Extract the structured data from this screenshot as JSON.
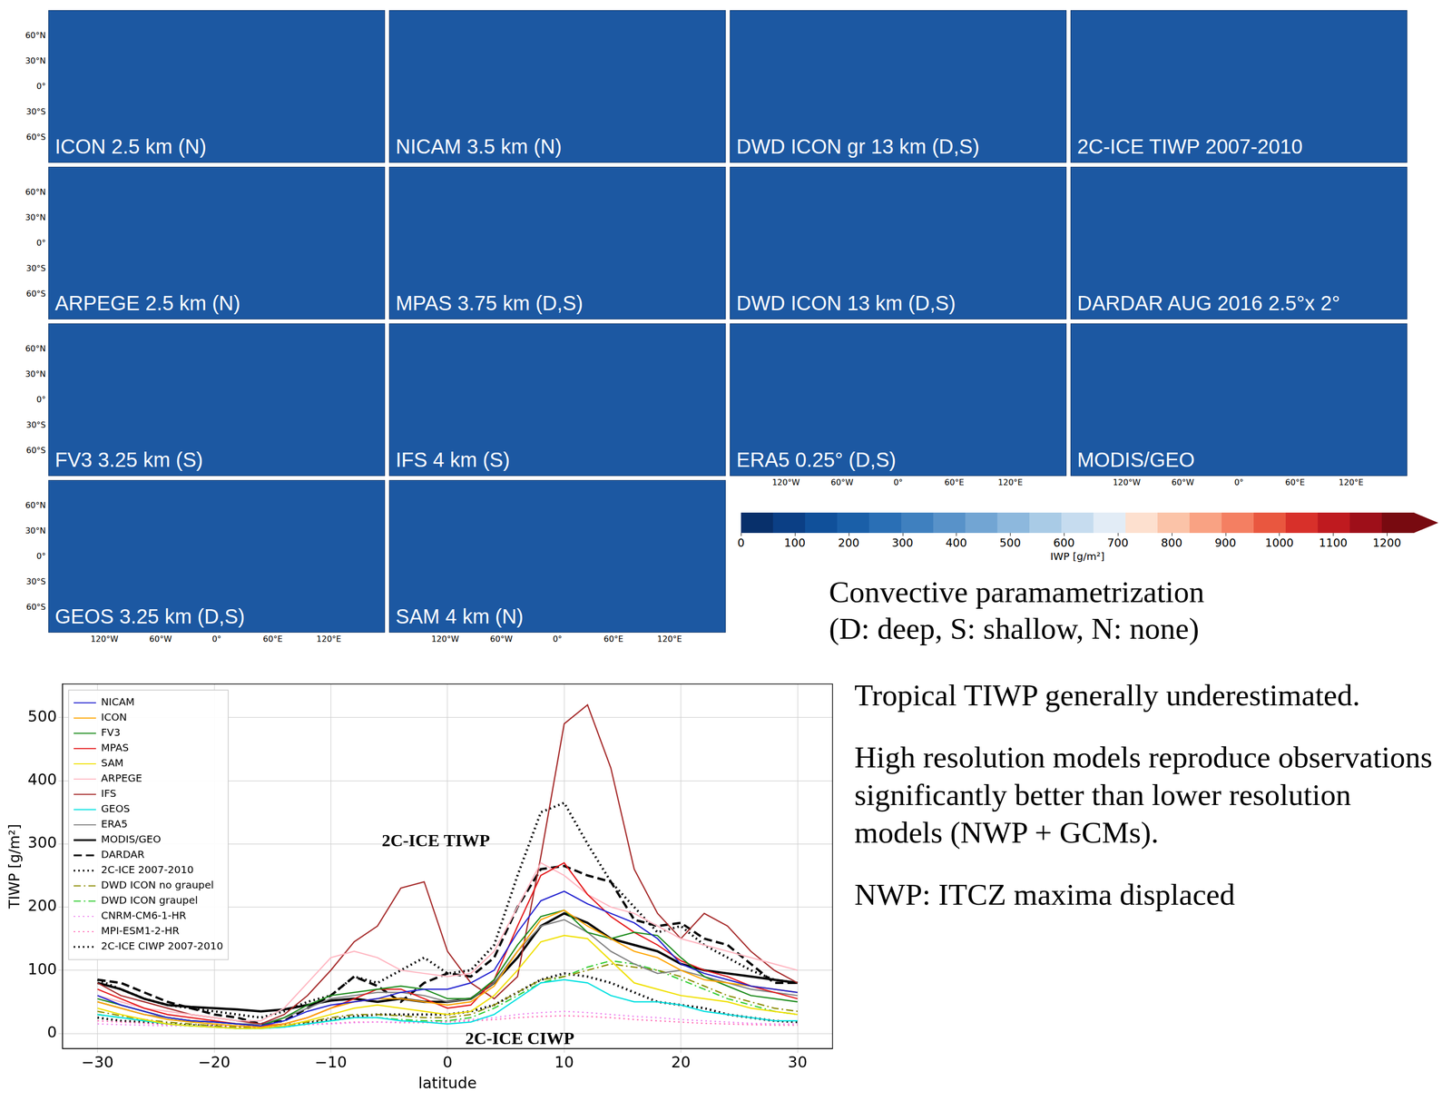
{
  "maps": {
    "lat_range": [
      -90,
      90
    ],
    "lon_range": [
      -180,
      180
    ],
    "lat_ticks": [
      {
        "value": 60,
        "label": "60°N"
      },
      {
        "value": 30,
        "label": "30°N"
      },
      {
        "value": 0,
        "label": "0°"
      },
      {
        "value": -30,
        "label": "30°S"
      },
      {
        "value": -60,
        "label": "60°S"
      }
    ],
    "lon_ticks": [
      {
        "value": -120,
        "label": "120°W"
      },
      {
        "value": -60,
        "label": "60°W"
      },
      {
        "value": 0,
        "label": "0°"
      },
      {
        "value": 60,
        "label": "60°E"
      },
      {
        "value": 120,
        "label": "120°E"
      }
    ],
    "rows": [
      [
        "ICON 2.5 km (N)",
        "NICAM 3.5 km (N)",
        "DWD ICON gr 13 km (D,S)",
        "2C-ICE TIWP 2007-2010"
      ],
      [
        "ARPEGE 2.5 km (N)",
        "MPAS 3.75 km (D,S)",
        "DWD ICON 13 km (D,S)",
        "DARDAR AUG 2016 2.5°x 2°"
      ],
      [
        "FV3 3.25 km (S)",
        "IFS 4 km (S)",
        "ERA5 0.25° (D,S)",
        "MODIS/GEO"
      ],
      [
        "GEOS 3.25 km (D,S)",
        "SAM 4 km (N)"
      ]
    ]
  },
  "colorbar": {
    "label": "IWP [g/m²]",
    "range": [
      0,
      1250
    ],
    "ticks": [
      0,
      100,
      200,
      300,
      400,
      500,
      600,
      700,
      800,
      900,
      1000,
      1100,
      1200
    ],
    "colors": [
      "#08306b",
      "#0b3f85",
      "#10509a",
      "#1a5fa8",
      "#2a6fb5",
      "#3f80bf",
      "#5892c9",
      "#72a5d3",
      "#8db8dd",
      "#a9cbe6",
      "#c6dcef",
      "#e2ecf6",
      "#fde0cf",
      "#fbc3a8",
      "#f9a283",
      "#f47f62",
      "#e9573f",
      "#d8302a",
      "#bf1a1f",
      "#9e0f19",
      "#780a10"
    ]
  },
  "convection_key": [
    "Convective paramametrization",
    "(D: deep, S: shallow, N: none)"
  ],
  "notes": [
    "Tropical TIWP generally underestimated.",
    "High resolution models reproduce observations significantly better than lower resolution models (NWP + GCMs).",
    "NWP: ITCZ maxima displaced"
  ],
  "chart_data": {
    "type": "line",
    "x_label": "latitude",
    "y_label": "TIWP [g/m²]",
    "xlim": [
      -33,
      33
    ],
    "ylim": [
      -24,
      553
    ],
    "xticks": [
      {
        "value": -30,
        "label": "−30"
      },
      {
        "value": -20,
        "label": "−20"
      },
      {
        "value": -10,
        "label": "−10"
      },
      0,
      10,
      20,
      30
    ],
    "yticks": [
      0,
      100,
      200,
      300,
      400,
      500
    ],
    "grid": true,
    "legend": "upper left",
    "annotations": [
      {
        "text": "2C-ICE TIWP",
        "x": -1,
        "y": 303
      },
      {
        "text": "2C-ICE CIWP",
        "x": 6.2,
        "y": -10
      }
    ],
    "x": [
      -30,
      -28,
      -26,
      -24,
      -22,
      -20,
      -18,
      -16,
      -14,
      -12,
      -10,
      -8,
      -6,
      -4,
      -2,
      0,
      2,
      4,
      6,
      8,
      10,
      12,
      14,
      16,
      18,
      20,
      22,
      24,
      26,
      28,
      30
    ],
    "series": [
      {
        "name": "NICAM",
        "color": "#2323d0",
        "line_style": "solid",
        "values": [
          60,
          45,
          35,
          25,
          20,
          18,
          15,
          12,
          20,
          35,
          45,
          50,
          55,
          65,
          70,
          70,
          80,
          100,
          160,
          210,
          225,
          205,
          190,
          175,
          150,
          110,
          95,
          85,
          75,
          70,
          65
        ]
      },
      {
        "name": "ICON",
        "color": "#ffa500",
        "line_style": "solid",
        "values": [
          50,
          40,
          30,
          22,
          18,
          15,
          12,
          10,
          15,
          25,
          40,
          50,
          55,
          55,
          50,
          45,
          50,
          75,
          130,
          180,
          195,
          170,
          150,
          130,
          120,
          100,
          85,
          80,
          75,
          70,
          65
        ]
      },
      {
        "name": "FV3",
        "color": "#1a8a1a",
        "line_style": "solid",
        "values": [
          55,
          45,
          35,
          25,
          20,
          18,
          15,
          12,
          25,
          45,
          60,
          65,
          70,
          75,
          70,
          55,
          55,
          85,
          140,
          185,
          195,
          160,
          150,
          160,
          155,
          120,
          90,
          75,
          60,
          55,
          50
        ]
      },
      {
        "name": "MPAS",
        "color": "#e41a1c",
        "line_style": "solid",
        "values": [
          70,
          55,
          40,
          30,
          25,
          20,
          15,
          12,
          15,
          25,
          40,
          55,
          70,
          70,
          55,
          40,
          45,
          85,
          170,
          250,
          270,
          220,
          185,
          160,
          140,
          115,
          100,
          90,
          75,
          65,
          55
        ]
      },
      {
        "name": "SAM",
        "color": "#f0e000",
        "line_style": "solid",
        "values": [
          40,
          30,
          22,
          15,
          12,
          10,
          8,
          8,
          12,
          20,
          30,
          40,
          45,
          40,
          35,
          30,
          35,
          60,
          100,
          145,
          155,
          150,
          115,
          80,
          70,
          60,
          55,
          50,
          40,
          35,
          30
        ]
      },
      {
        "name": "ARPEGE",
        "color": "#ffb6c1",
        "line_style": "solid",
        "values": [
          60,
          50,
          40,
          35,
          30,
          25,
          20,
          20,
          40,
          80,
          120,
          130,
          120,
          100,
          95,
          90,
          95,
          130,
          200,
          270,
          250,
          220,
          200,
          190,
          170,
          150,
          140,
          130,
          120,
          110,
          100
        ]
      },
      {
        "name": "IFS",
        "color": "#a52a2a",
        "line_style": "solid",
        "values": [
          80,
          60,
          50,
          40,
          30,
          25,
          20,
          15,
          30,
          60,
          100,
          145,
          170,
          230,
          240,
          130,
          80,
          55,
          90,
          280,
          490,
          520,
          420,
          260,
          190,
          150,
          190,
          170,
          130,
          100,
          80
        ]
      },
      {
        "name": "GEOS",
        "color": "#00e0e0",
        "line_style": "solid",
        "values": [
          30,
          25,
          20,
          15,
          12,
          10,
          8,
          8,
          10,
          15,
          20,
          25,
          25,
          20,
          18,
          15,
          18,
          30,
          55,
          80,
          85,
          80,
          60,
          50,
          50,
          45,
          35,
          30,
          25,
          20,
          20
        ]
      },
      {
        "name": "ERA5",
        "color": "#808080",
        "line_style": "solid",
        "values": [
          50,
          40,
          30,
          25,
          20,
          18,
          15,
          15,
          25,
          40,
          55,
          60,
          65,
          65,
          60,
          50,
          55,
          80,
          130,
          170,
          180,
          160,
          130,
          110,
          95,
          100,
          90,
          80,
          70,
          65,
          60
        ]
      },
      {
        "name": "MODIS/GEO",
        "color": "#000000",
        "line_style": "solid",
        "values": [
          80,
          70,
          55,
          45,
          42,
          40,
          38,
          35,
          38,
          45,
          52,
          55,
          50,
          55,
          50,
          50,
          55,
          80,
          120,
          170,
          190,
          175,
          150,
          140,
          130,
          110,
          100,
          95,
          90,
          85,
          80
        ]
      },
      {
        "name": "DARDAR",
        "color": "#000000",
        "line_style": "dashed",
        "values": [
          85,
          80,
          65,
          50,
          40,
          30,
          25,
          15,
          20,
          40,
          60,
          90,
          75,
          50,
          80,
          95,
          90,
          120,
          200,
          260,
          265,
          250,
          240,
          180,
          170,
          175,
          150,
          140,
          110,
          80,
          80
        ]
      },
      {
        "name": "2C-ICE 2007-2010",
        "color": "#000000",
        "line_style": "dotted",
        "values": [
          85,
          70,
          55,
          45,
          40,
          35,
          30,
          25,
          35,
          50,
          60,
          90,
          80,
          100,
          120,
          95,
          100,
          140,
          250,
          350,
          365,
          300,
          240,
          200,
          160,
          170,
          140,
          120,
          100,
          85,
          80
        ]
      },
      {
        "name": "DWD ICON no graupel",
        "color": "#8b8b00",
        "line_style": "dashdot",
        "values": [
          35,
          28,
          22,
          18,
          15,
          12,
          10,
          10,
          12,
          18,
          25,
          30,
          30,
          28,
          25,
          25,
          30,
          45,
          65,
          85,
          90,
          100,
          110,
          105,
          100,
          90,
          75,
          60,
          50,
          40,
          35
        ]
      },
      {
        "name": "DWD ICON graupel",
        "color": "#32cd32",
        "line_style": "dashdot",
        "values": [
          30,
          25,
          20,
          15,
          12,
          10,
          8,
          8,
          10,
          15,
          20,
          25,
          25,
          22,
          20,
          20,
          25,
          40,
          60,
          80,
          90,
          105,
          115,
          110,
          100,
          85,
          70,
          55,
          45,
          35,
          30
        ]
      },
      {
        "name": "CNRM-CM6-1-HR",
        "color": "#ee82ee",
        "line_style": "dotted",
        "values": [
          15,
          14,
          13,
          12,
          12,
          12,
          12,
          12,
          13,
          14,
          15,
          17,
          18,
          18,
          18,
          20,
          22,
          25,
          30,
          33,
          35,
          33,
          30,
          27,
          25,
          22,
          20,
          18,
          16,
          15,
          15
        ]
      },
      {
        "name": "MPI-ESM1-2-HR",
        "color": "#ff69b4",
        "line_style": "dotted",
        "values": [
          20,
          18,
          16,
          14,
          12,
          11,
          10,
          10,
          12,
          14,
          16,
          18,
          18,
          17,
          17,
          18,
          20,
          22,
          25,
          27,
          28,
          27,
          25,
          22,
          20,
          18,
          16,
          15,
          14,
          13,
          13
        ]
      },
      {
        "name": "2C-ICE CIWP 2007-2010",
        "color": "#000000",
        "line_style": "dotted",
        "values": [
          25,
          20,
          18,
          15,
          13,
          12,
          11,
          10,
          13,
          17,
          22,
          27,
          30,
          30,
          30,
          30,
          35,
          45,
          65,
          85,
          95,
          90,
          80,
          65,
          50,
          45,
          40,
          30,
          25,
          20,
          18
        ]
      }
    ]
  }
}
